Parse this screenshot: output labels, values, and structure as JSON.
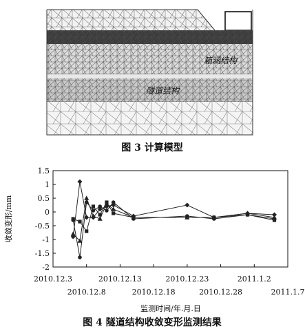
{
  "figure3": {
    "caption": "图 3   计算模型",
    "labels": {
      "culvert": "箱涵结构",
      "tunnel": "隧道结构"
    }
  },
  "figure4": {
    "caption": "图 4   隧道结构收敛变形监测结果",
    "chart_data": {
      "type": "line",
      "title": "",
      "ylabel": "收敛变形/mm",
      "xlabel": "监测时间/年.月.日",
      "ylim": [
        -2,
        1.5
      ],
      "yticks": [
        -2,
        -1.5,
        -1,
        -0.5,
        0,
        0.5,
        1,
        1.5
      ],
      "ytick_labels": [
        "-2",
        "-1.5",
        "-1",
        "-0.5",
        "0",
        "0.5",
        "1",
        "1.5"
      ],
      "xlim": [
        "2010-12-03",
        "2011-01-07"
      ],
      "xticks": [
        {
          "date": "2010-12-03",
          "label": "2010.12.3",
          "row": 0
        },
        {
          "date": "2010-12-08",
          "label": "2010.12.8",
          "row": 1
        },
        {
          "date": "2010-12-13",
          "label": "2010.12.13",
          "row": 0
        },
        {
          "date": "2010-12-18",
          "label": "2010.12.18",
          "row": 1
        },
        {
          "date": "2010-12-23",
          "label": "2010.12.23",
          "row": 0
        },
        {
          "date": "2010-12-28",
          "label": "2010.12.28",
          "row": 1
        },
        {
          "date": "2011-01-02",
          "label": "2011.1.2",
          "row": 0
        },
        {
          "date": "2011-01-07",
          "label": "2011.1.7",
          "row": 1
        }
      ],
      "series": [
        {
          "marker": "diamond",
          "x": [
            "2010-12-06",
            "2010-12-07",
            "2010-12-08",
            "2010-12-09",
            "2010-12-10",
            "2010-12-11",
            "2010-12-12",
            "2010-12-15",
            "2010-12-23",
            "2010-12-27",
            "2011-01-01",
            "2011-01-05"
          ],
          "y": [
            -0.9,
            1.1,
            -0.2,
            -0.2,
            0.1,
            0.2,
            0.25,
            -0.15,
            0.25,
            -0.2,
            -0.05,
            -0.1
          ]
        },
        {
          "marker": "triangle",
          "x": [
            "2010-12-06",
            "2010-12-07",
            "2010-12-08",
            "2010-12-09",
            "2010-12-10",
            "2010-12-11",
            "2010-12-12",
            "2010-12-15",
            "2010-12-23",
            "2010-12-27",
            "2011-01-01",
            "2011-01-05"
          ],
          "y": [
            -0.8,
            -1.05,
            0.5,
            -0.15,
            -0.25,
            0.3,
            0.1,
            -0.2,
            -0.2,
            -0.2,
            -0.05,
            -0.2
          ]
        },
        {
          "marker": "circle",
          "x": [
            "2010-12-06",
            "2010-12-07",
            "2010-12-08",
            "2010-12-09",
            "2010-12-10",
            "2010-12-11",
            "2010-12-12",
            "2010-12-15",
            "2010-12-23",
            "2010-12-27",
            "2011-01-01",
            "2011-01-05"
          ],
          "y": [
            -0.3,
            -1.65,
            0.35,
            0.05,
            0.2,
            0.05,
            0.35,
            -0.25,
            -0.15,
            -0.25,
            -0.1,
            -0.25
          ]
        },
        {
          "marker": "square",
          "x": [
            "2010-12-06",
            "2010-12-07",
            "2010-12-08",
            "2010-12-09",
            "2010-12-10",
            "2010-12-11",
            "2010-12-12",
            "2010-12-15",
            "2010-12-23",
            "2010-12-27",
            "2011-01-01",
            "2011-01-05"
          ],
          "y": [
            -0.25,
            -0.35,
            -0.7,
            0.2,
            -0.1,
            0.35,
            -0.05,
            -0.2,
            -0.2,
            -0.2,
            -0.1,
            -0.3
          ]
        }
      ]
    }
  }
}
